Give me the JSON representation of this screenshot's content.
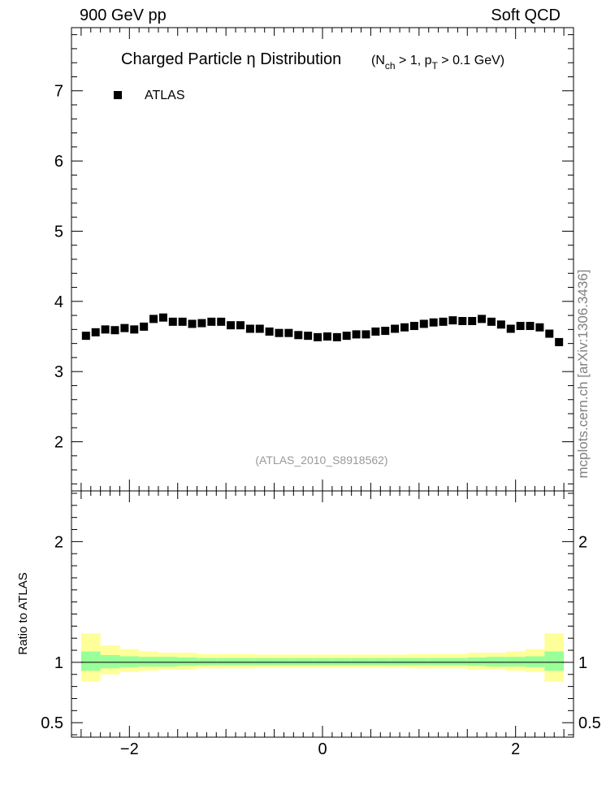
{
  "header": {
    "left": "900 GeV pp",
    "right": "Soft QCD"
  },
  "side_label": "mcplots.cern.ch [arXiv:1306.3436]",
  "chart_data": [
    {
      "type": "scatter",
      "title_main": "Charged Particle  η Distribution",
      "title_sub": "(N_ch > 1, p_T > 0.1 GeV)",
      "subtitle_parts": {
        "open": "(N",
        "nsub": "ch",
        "mid": " > 1, p",
        "psub": "T",
        "close": " > 0.1 GeV)"
      },
      "watermark": "(ATLAS_2010_S8918562)",
      "xlim": [
        -2.6,
        2.6
      ],
      "ylim": [
        1.3,
        7.9
      ],
      "ytick_labels": [
        "2",
        "3",
        "4",
        "5",
        "6",
        "7"
      ],
      "legend": {
        "position": "top-left",
        "entries": [
          {
            "name": "ATLAS",
            "color": "#000000",
            "marker": "square"
          }
        ]
      },
      "series": [
        {
          "name": "ATLAS",
          "color": "#000000",
          "x": [
            -2.45,
            -2.35,
            -2.25,
            -2.15,
            -2.05,
            -1.95,
            -1.85,
            -1.75,
            -1.65,
            -1.55,
            -1.45,
            -1.35,
            -1.25,
            -1.15,
            -1.05,
            -0.95,
            -0.85,
            -0.75,
            -0.65,
            -0.55,
            -0.45,
            -0.35,
            -0.25,
            -0.15,
            -0.05,
            0.05,
            0.15,
            0.25,
            0.35,
            0.45,
            0.55,
            0.65,
            0.75,
            0.85,
            0.95,
            1.05,
            1.15,
            1.25,
            1.35,
            1.45,
            1.55,
            1.65,
            1.75,
            1.85,
            1.95,
            2.05,
            2.15,
            2.25,
            2.35,
            2.45
          ],
          "y": [
            3.51,
            3.56,
            3.6,
            3.59,
            3.62,
            3.6,
            3.64,
            3.75,
            3.77,
            3.71,
            3.71,
            3.68,
            3.69,
            3.71,
            3.71,
            3.66,
            3.66,
            3.61,
            3.61,
            3.57,
            3.55,
            3.55,
            3.52,
            3.51,
            3.49,
            3.5,
            3.49,
            3.51,
            3.53,
            3.53,
            3.57,
            3.58,
            3.61,
            3.63,
            3.65,
            3.68,
            3.7,
            3.71,
            3.73,
            3.72,
            3.72,
            3.75,
            3.71,
            3.67,
            3.61,
            3.65,
            3.65,
            3.63,
            3.54,
            3.42
          ]
        }
      ]
    },
    {
      "type": "area",
      "ylabel": "Ratio to ATLAS",
      "xlim": [
        -2.6,
        2.6
      ],
      "ylim": [
        0.38,
        2.42
      ],
      "xtick_labels": [
        "−2",
        "0",
        "2"
      ],
      "ytick_labels": [
        "0.5",
        "1",
        "2"
      ],
      "bands": {
        "edges": [
          -2.5,
          -2.3,
          -2.1,
          -1.9,
          -1.7,
          -1.5,
          -1.3,
          -1.1,
          -0.9,
          -0.7,
          -0.5,
          -0.3,
          -0.1,
          0.1,
          0.3,
          0.5,
          0.7,
          0.9,
          1.1,
          1.3,
          1.5,
          1.7,
          1.9,
          2.1,
          2.3,
          2.5
        ],
        "stat_syst": {
          "color": "#ffff99",
          "lo": [
            0.84,
            0.9,
            0.92,
            0.93,
            0.94,
            0.94,
            0.95,
            0.95,
            0.95,
            0.955,
            0.955,
            0.955,
            0.955,
            0.955,
            0.955,
            0.955,
            0.955,
            0.95,
            0.95,
            0.95,
            0.94,
            0.94,
            0.93,
            0.92,
            0.84
          ],
          "hi": [
            1.24,
            1.14,
            1.11,
            1.09,
            1.08,
            1.08,
            1.07,
            1.07,
            1.07,
            1.065,
            1.065,
            1.065,
            1.065,
            1.065,
            1.065,
            1.065,
            1.065,
            1.07,
            1.07,
            1.07,
            1.08,
            1.08,
            1.09,
            1.11,
            1.24
          ]
        },
        "stat": {
          "color": "#99ff99",
          "lo": [
            0.93,
            0.95,
            0.96,
            0.965,
            0.965,
            0.97,
            0.975,
            0.975,
            0.975,
            0.975,
            0.975,
            0.975,
            0.975,
            0.975,
            0.975,
            0.975,
            0.975,
            0.975,
            0.975,
            0.975,
            0.97,
            0.965,
            0.965,
            0.96,
            0.93
          ],
          "hi": [
            1.09,
            1.06,
            1.05,
            1.045,
            1.045,
            1.04,
            1.035,
            1.035,
            1.035,
            1.035,
            1.035,
            1.035,
            1.035,
            1.035,
            1.035,
            1.035,
            1.035,
            1.035,
            1.035,
            1.035,
            1.04,
            1.045,
            1.045,
            1.05,
            1.09
          ]
        }
      }
    }
  ]
}
